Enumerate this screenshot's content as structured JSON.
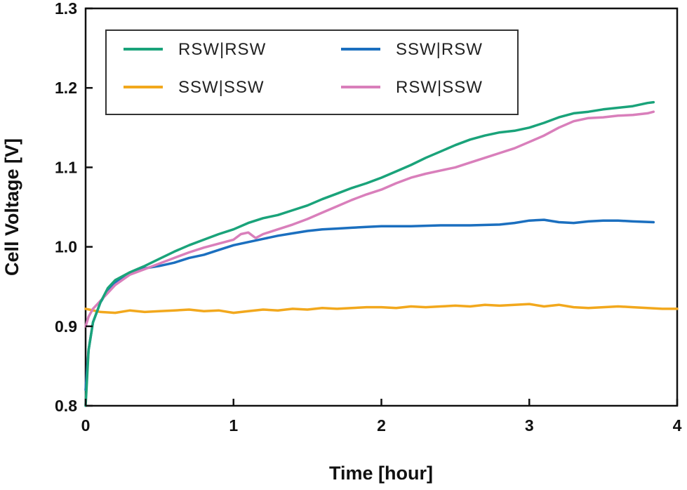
{
  "chart_data": {
    "type": "line",
    "xlabel": "Time [hour]",
    "ylabel": "Cell Voltage [V]",
    "xlim": [
      0,
      4
    ],
    "ylim": [
      0.8,
      1.3
    ],
    "x_ticks": [
      "0",
      "1",
      "2",
      "3",
      "4"
    ],
    "y_ticks": [
      "0.8",
      "0.9",
      "1.0",
      "1.1",
      "1.2",
      "1.3"
    ],
    "grid": false,
    "legend_position": "top-left",
    "series": [
      {
        "name": "RSW|RSW",
        "color": "#1aa37a",
        "points": [
          [
            0,
            0.8
          ],
          [
            0.02,
            0.87
          ],
          [
            0.05,
            0.905
          ],
          [
            0.1,
            0.93
          ],
          [
            0.15,
            0.948
          ],
          [
            0.2,
            0.958
          ],
          [
            0.3,
            0.968
          ],
          [
            0.4,
            0.976
          ],
          [
            0.5,
            0.985
          ],
          [
            0.6,
            0.994
          ],
          [
            0.7,
            1.002
          ],
          [
            0.8,
            1.009
          ],
          [
            0.9,
            1.016
          ],
          [
            1.0,
            1.022
          ],
          [
            1.1,
            1.03
          ],
          [
            1.2,
            1.036
          ],
          [
            1.3,
            1.04
          ],
          [
            1.4,
            1.046
          ],
          [
            1.5,
            1.052
          ],
          [
            1.6,
            1.06
          ],
          [
            1.7,
            1.067
          ],
          [
            1.8,
            1.074
          ],
          [
            1.9,
            1.08
          ],
          [
            2.0,
            1.087
          ],
          [
            2.1,
            1.095
          ],
          [
            2.2,
            1.103
          ],
          [
            2.3,
            1.112
          ],
          [
            2.4,
            1.12
          ],
          [
            2.5,
            1.128
          ],
          [
            2.6,
            1.135
          ],
          [
            2.7,
            1.14
          ],
          [
            2.8,
            1.144
          ],
          [
            2.9,
            1.146
          ],
          [
            3.0,
            1.15
          ],
          [
            3.1,
            1.156
          ],
          [
            3.2,
            1.163
          ],
          [
            3.3,
            1.168
          ],
          [
            3.4,
            1.17
          ],
          [
            3.5,
            1.173
          ],
          [
            3.6,
            1.175
          ],
          [
            3.7,
            1.177
          ],
          [
            3.8,
            1.181
          ],
          [
            3.84,
            1.182
          ]
        ]
      },
      {
        "name": "SSW|RSW",
        "color": "#1b6fbf",
        "points": [
          [
            0,
            0.82
          ],
          [
            0.02,
            0.87
          ],
          [
            0.05,
            0.905
          ],
          [
            0.1,
            0.93
          ],
          [
            0.15,
            0.945
          ],
          [
            0.2,
            0.955
          ],
          [
            0.3,
            0.966
          ],
          [
            0.4,
            0.973
          ],
          [
            0.5,
            0.976
          ],
          [
            0.6,
            0.98
          ],
          [
            0.7,
            0.986
          ],
          [
            0.8,
            0.99
          ],
          [
            0.9,
            0.996
          ],
          [
            1.0,
            1.002
          ],
          [
            1.1,
            1.006
          ],
          [
            1.2,
            1.01
          ],
          [
            1.3,
            1.014
          ],
          [
            1.4,
            1.017
          ],
          [
            1.5,
            1.02
          ],
          [
            1.6,
            1.022
          ],
          [
            1.7,
            1.023
          ],
          [
            1.8,
            1.024
          ],
          [
            1.9,
            1.025
          ],
          [
            2.0,
            1.026
          ],
          [
            2.2,
            1.026
          ],
          [
            2.4,
            1.027
          ],
          [
            2.6,
            1.027
          ],
          [
            2.8,
            1.028
          ],
          [
            2.9,
            1.03
          ],
          [
            3.0,
            1.033
          ],
          [
            3.1,
            1.034
          ],
          [
            3.2,
            1.031
          ],
          [
            3.3,
            1.03
          ],
          [
            3.4,
            1.032
          ],
          [
            3.5,
            1.033
          ],
          [
            3.6,
            1.033
          ],
          [
            3.7,
            1.032
          ],
          [
            3.84,
            1.031
          ]
        ]
      },
      {
        "name": "SSW|SSW",
        "color": "#f2a81d",
        "points": [
          [
            0,
            0.922
          ],
          [
            0.1,
            0.918
          ],
          [
            0.2,
            0.917
          ],
          [
            0.3,
            0.92
          ],
          [
            0.4,
            0.918
          ],
          [
            0.5,
            0.919
          ],
          [
            0.6,
            0.92
          ],
          [
            0.7,
            0.921
          ],
          [
            0.8,
            0.919
          ],
          [
            0.9,
            0.92
          ],
          [
            1.0,
            0.917
          ],
          [
            1.1,
            0.919
          ],
          [
            1.2,
            0.921
          ],
          [
            1.3,
            0.92
          ],
          [
            1.4,
            0.922
          ],
          [
            1.5,
            0.921
          ],
          [
            1.6,
            0.923
          ],
          [
            1.7,
            0.922
          ],
          [
            1.8,
            0.923
          ],
          [
            1.9,
            0.924
          ],
          [
            2.0,
            0.924
          ],
          [
            2.1,
            0.923
          ],
          [
            2.2,
            0.925
          ],
          [
            2.3,
            0.924
          ],
          [
            2.4,
            0.925
          ],
          [
            2.5,
            0.926
          ],
          [
            2.6,
            0.925
          ],
          [
            2.7,
            0.927
          ],
          [
            2.8,
            0.926
          ],
          [
            2.9,
            0.927
          ],
          [
            3.0,
            0.928
          ],
          [
            3.1,
            0.925
          ],
          [
            3.2,
            0.927
          ],
          [
            3.3,
            0.924
          ],
          [
            3.4,
            0.923
          ],
          [
            3.5,
            0.924
          ],
          [
            3.6,
            0.925
          ],
          [
            3.7,
            0.924
          ],
          [
            3.8,
            0.923
          ],
          [
            3.9,
            0.922
          ],
          [
            4.0,
            0.922
          ]
        ]
      },
      {
        "name": "RSW|SSW",
        "color": "#d97fbb",
        "points": [
          [
            0,
            0.9
          ],
          [
            0.02,
            0.912
          ],
          [
            0.05,
            0.922
          ],
          [
            0.1,
            0.932
          ],
          [
            0.15,
            0.942
          ],
          [
            0.2,
            0.952
          ],
          [
            0.3,
            0.965
          ],
          [
            0.4,
            0.972
          ],
          [
            0.5,
            0.979
          ],
          [
            0.6,
            0.986
          ],
          [
            0.7,
            0.993
          ],
          [
            0.8,
            0.999
          ],
          [
            0.9,
            1.004
          ],
          [
            1.0,
            1.009
          ],
          [
            1.05,
            1.016
          ],
          [
            1.1,
            1.018
          ],
          [
            1.15,
            1.011
          ],
          [
            1.2,
            1.016
          ],
          [
            1.3,
            1.022
          ],
          [
            1.4,
            1.028
          ],
          [
            1.5,
            1.035
          ],
          [
            1.6,
            1.043
          ],
          [
            1.7,
            1.051
          ],
          [
            1.8,
            1.059
          ],
          [
            1.9,
            1.066
          ],
          [
            2.0,
            1.072
          ],
          [
            2.1,
            1.08
          ],
          [
            2.2,
            1.087
          ],
          [
            2.3,
            1.092
          ],
          [
            2.4,
            1.096
          ],
          [
            2.5,
            1.1
          ],
          [
            2.6,
            1.106
          ],
          [
            2.7,
            1.112
          ],
          [
            2.8,
            1.118
          ],
          [
            2.9,
            1.124
          ],
          [
            3.0,
            1.132
          ],
          [
            3.1,
            1.14
          ],
          [
            3.2,
            1.15
          ],
          [
            3.3,
            1.158
          ],
          [
            3.4,
            1.162
          ],
          [
            3.5,
            1.163
          ],
          [
            3.6,
            1.165
          ],
          [
            3.7,
            1.166
          ],
          [
            3.8,
            1.168
          ],
          [
            3.84,
            1.17
          ]
        ]
      }
    ]
  }
}
